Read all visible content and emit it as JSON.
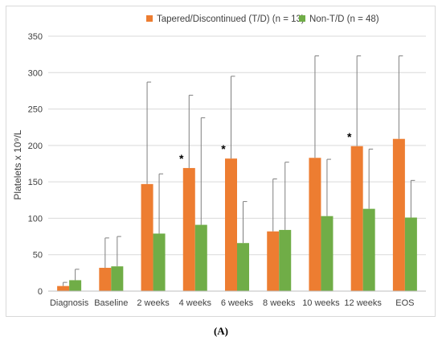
{
  "panel_label": "(A)",
  "chart_data": {
    "type": "bar",
    "ylabel": "Platelets x 10⁹/L",
    "ylim": [
      0,
      350
    ],
    "yticks": [
      0,
      50,
      100,
      150,
      200,
      250,
      300,
      350
    ],
    "grid": true,
    "legend_position": "top-right",
    "categories": [
      "Diagnosis",
      "Baseline",
      "2 weeks",
      "4 weeks",
      "6 weeks",
      "8 weeks",
      "10 weeks",
      "12 weeks",
      "EOS"
    ],
    "series": [
      {
        "name": "Tapered/Discontinued (T/D) (n = 13)",
        "color": "#ed7d31",
        "values": [
          7,
          32,
          147,
          169,
          182,
          82,
          183,
          199,
          209
        ],
        "error_upper": [
          12,
          73,
          287,
          269,
          295,
          154,
          323,
          323,
          323
        ]
      },
      {
        "name": "Non-T/D (n = 48)",
        "color": "#70ad47",
        "values": [
          15,
          34,
          79,
          91,
          66,
          84,
          103,
          113,
          101
        ],
        "error_upper": [
          30,
          75,
          161,
          238,
          123,
          177,
          181,
          195,
          152
        ]
      }
    ],
    "annotations": [
      {
        "text": "*",
        "category": "4 weeks"
      },
      {
        "text": "*",
        "category": "6 weeks"
      },
      {
        "text": "*",
        "category": "12 weeks"
      }
    ]
  }
}
